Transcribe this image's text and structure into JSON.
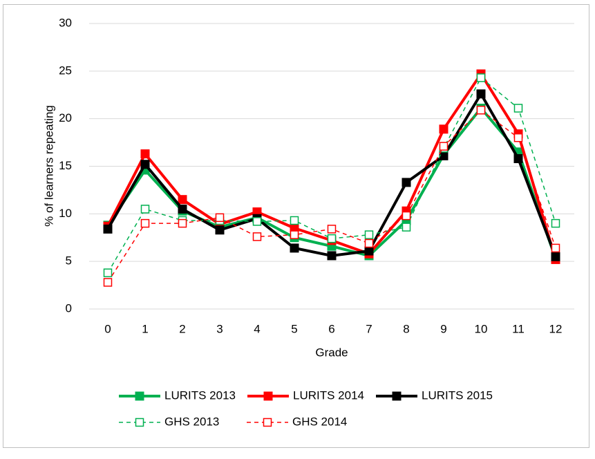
{
  "chart_data": {
    "type": "line",
    "x_label": "Grade",
    "y_label": "% of learners repeating",
    "categories": [
      "0",
      "1",
      "2",
      "3",
      "4",
      "5",
      "6",
      "7",
      "8",
      "9",
      "10",
      "11",
      "12"
    ],
    "ylim": [
      0,
      30
    ],
    "yticks": [
      0,
      5,
      10,
      15,
      20,
      25,
      30
    ],
    "grid": true,
    "series": [
      {
        "name": "LURITS 2013",
        "color": "#00b050",
        "line_style": "solid",
        "marker": "filled",
        "values": [
          8.8,
          14.6,
          10.3,
          8.6,
          9.6,
          7.5,
          6.6,
          5.6,
          9.3,
          16.2,
          21.1,
          16.5,
          5.3
        ]
      },
      {
        "name": "LURITS 2014",
        "color": "#ff0000",
        "line_style": "solid",
        "marker": "filled",
        "values": [
          8.7,
          16.3,
          11.5,
          8.9,
          10.2,
          8.5,
          7.2,
          5.8,
          10.3,
          18.9,
          24.7,
          18.4,
          5.2
        ]
      },
      {
        "name": "LURITS 2015",
        "color": "#000000",
        "line_style": "solid",
        "marker": "filled",
        "values": [
          8.4,
          15.2,
          10.5,
          8.3,
          9.5,
          6.4,
          5.6,
          6.1,
          13.3,
          16.1,
          22.6,
          15.8,
          5.5
        ]
      },
      {
        "name": "GHS 2013",
        "color": "#00b050",
        "line_style": "dashed",
        "marker": "open",
        "values": [
          3.8,
          10.5,
          9.3,
          9.3,
          9.2,
          9.3,
          7.4,
          7.8,
          8.6,
          16.9,
          24.3,
          21.1,
          9.0
        ]
      },
      {
        "name": "GHS 2014",
        "color": "#ff0000",
        "line_style": "dashed",
        "marker": "open",
        "values": [
          2.8,
          9.0,
          9.0,
          9.6,
          7.6,
          7.8,
          8.4,
          6.9,
          9.8,
          17.1,
          20.9,
          18.0,
          6.4
        ]
      }
    ]
  }
}
